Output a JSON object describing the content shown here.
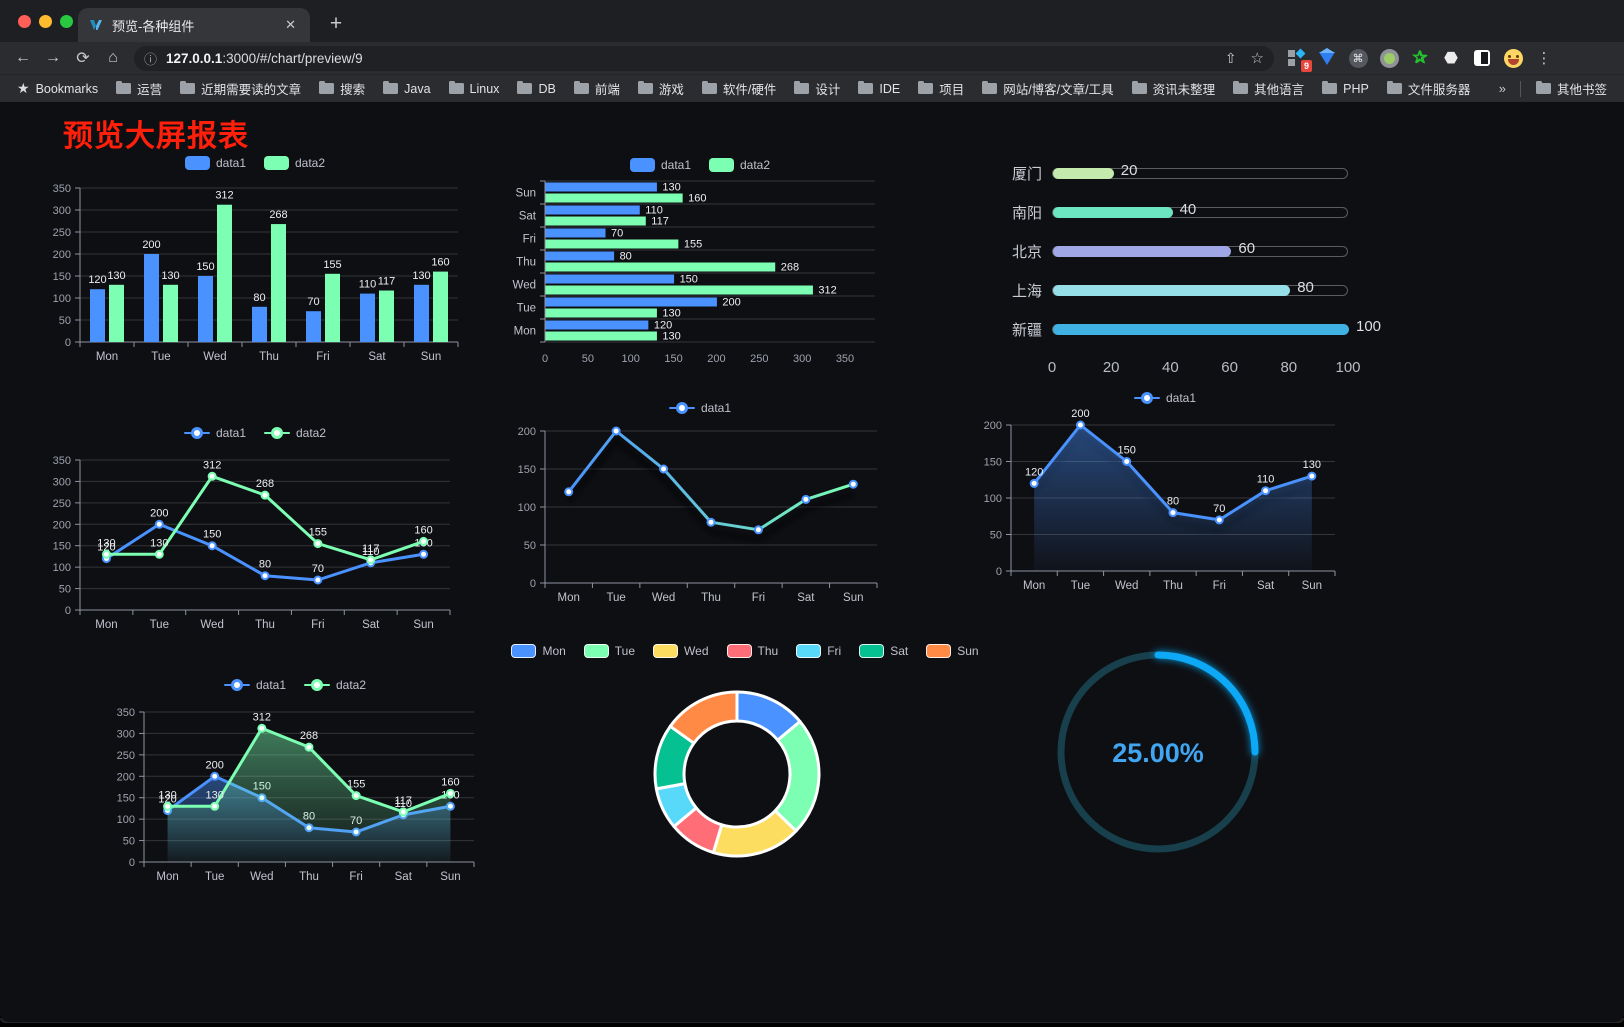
{
  "browser": {
    "traffic_lights": [
      "#ff5f57",
      "#febc2e",
      "#28c840"
    ],
    "tab": {
      "title": "预览-各种组件",
      "close_glyph": "✕"
    },
    "new_tab_plus": "+",
    "nav": {
      "back": "←",
      "forward": "→",
      "reload": "⟳",
      "home": "⌂"
    },
    "url": {
      "info_glyph": "ⓘ",
      "host_bold": "127.0.0.1",
      "rest": ":3000/#/chart/preview/9"
    },
    "url_actions": {
      "share_glyph": "⇧",
      "star_glyph": "☆"
    },
    "extension_badge": "9",
    "menu_glyph": "⋮",
    "bookmarks_star_label": "Bookmarks",
    "bookmarks": [
      "运营",
      "近期需要读的文章",
      "搜索",
      "Java",
      "Linux",
      "DB",
      "前端",
      "游戏",
      "软件/硬件",
      "设计",
      "IDE",
      "项目",
      "网站/博客/文章/工具",
      "资讯未整理",
      "其他语言",
      "PHP",
      "文件服务器"
    ],
    "bookmarks_overflow": "»",
    "other_bookmarks": "其他书签"
  },
  "page": {
    "title": "预览大屏报表",
    "title_color": "#ff1f0a"
  },
  "chart_data": [
    {
      "id": "bar-grouped",
      "type": "bar",
      "categories": [
        "Mon",
        "Tue",
        "Wed",
        "Thu",
        "Fri",
        "Sat",
        "Sun"
      ],
      "series": [
        {
          "name": "data1",
          "color": "#4992ff",
          "values": [
            120,
            200,
            150,
            80,
            70,
            110,
            130
          ]
        },
        {
          "name": "data2",
          "color": "#7cffb2",
          "values": [
            130,
            130,
            312,
            268,
            155,
            117,
            160
          ]
        }
      ],
      "ylim": [
        0,
        350
      ],
      "ystep": 50,
      "value_labels": true,
      "legend_position": "top",
      "grid": true
    },
    {
      "id": "bar-horizontal",
      "type": "bar",
      "orientation": "horizontal",
      "categories_top_to_bottom": [
        "Sun",
        "Sat",
        "Fri",
        "Thu",
        "Wed",
        "Tue",
        "Mon"
      ],
      "series": [
        {
          "name": "data1",
          "color": "#4992ff",
          "values": [
            130,
            110,
            70,
            80,
            150,
            200,
            120
          ]
        },
        {
          "name": "data2",
          "color": "#7cffb2",
          "values": [
            160,
            117,
            155,
            268,
            312,
            130,
            130
          ]
        }
      ],
      "xlim": [
        0,
        350
      ],
      "xstep": 50,
      "value_labels": true,
      "legend_position": "top",
      "grid": true
    },
    {
      "id": "progress-bars",
      "type": "bar",
      "orientation": "horizontal-pill",
      "categories": [
        "厦门",
        "南阳",
        "北京",
        "上海",
        "新疆"
      ],
      "values": [
        20,
        40,
        60,
        80,
        100
      ],
      "colors": [
        "#c4ebad",
        "#6be6c1",
        "#a0a7e6",
        "#96dee8",
        "#3fb1e3"
      ],
      "xlim": [
        0,
        100
      ],
      "xticks": [
        0,
        20,
        40,
        60,
        80,
        100
      ],
      "value_labels": true
    },
    {
      "id": "line-two-series",
      "type": "line",
      "categories": [
        "Mon",
        "Tue",
        "Wed",
        "Thu",
        "Fri",
        "Sat",
        "Sun"
      ],
      "series": [
        {
          "name": "data1",
          "color": "#4992ff",
          "values": [
            120,
            200,
            150,
            80,
            70,
            110,
            130
          ]
        },
        {
          "name": "data2",
          "color": "#7cffb2",
          "values": [
            130,
            130,
            312,
            268,
            155,
            117,
            160
          ]
        }
      ],
      "ylim": [
        0,
        350
      ],
      "ystep": 50,
      "value_labels": true,
      "legend_position": "top",
      "grid": true
    },
    {
      "id": "line-gradient",
      "type": "line",
      "categories": [
        "Mon",
        "Tue",
        "Wed",
        "Thu",
        "Fri",
        "Sat",
        "Sun"
      ],
      "series": [
        {
          "name": "data1",
          "color": "#4992ff",
          "gradient": [
            "#4992ff",
            "#7cffb2"
          ],
          "shadow": true,
          "values": [
            120,
            200,
            150,
            80,
            70,
            110,
            130
          ]
        }
      ],
      "ylim": [
        0,
        200
      ],
      "ystep": 50,
      "value_labels": false,
      "legend_position": "top",
      "grid": true
    },
    {
      "id": "line-area-labels",
      "type": "line",
      "categories": [
        "Mon",
        "Tue",
        "Wed",
        "Thu",
        "Fri",
        "Sat",
        "Sun"
      ],
      "series": [
        {
          "name": "data1",
          "color": "#4992ff",
          "area": true,
          "shadow": true,
          "values": [
            120,
            200,
            150,
            80,
            70,
            110,
            130
          ]
        }
      ],
      "ylim": [
        0,
        200
      ],
      "ystep": 50,
      "value_labels": true,
      "legend_position": "top",
      "grid": true
    },
    {
      "id": "area-two-series",
      "type": "area",
      "categories": [
        "Mon",
        "Tue",
        "Wed",
        "Thu",
        "Fri",
        "Sat",
        "Sun"
      ],
      "series": [
        {
          "name": "data1",
          "color": "#4992ff",
          "area": true,
          "values": [
            120,
            200,
            150,
            80,
            70,
            110,
            130
          ]
        },
        {
          "name": "data2",
          "color": "#7cffb2",
          "area": true,
          "values": [
            130,
            130,
            312,
            268,
            155,
            117,
            160
          ]
        }
      ],
      "ylim": [
        0,
        350
      ],
      "ystep": 50,
      "value_labels": true,
      "legend_position": "top",
      "grid": true
    },
    {
      "id": "donut",
      "type": "pie",
      "categories": [
        "Mon",
        "Tue",
        "Wed",
        "Thu",
        "Fri",
        "Sat",
        "Sun"
      ],
      "values": [
        120,
        200,
        150,
        80,
        70,
        110,
        130
      ],
      "colors": [
        "#4992ff",
        "#7cffb2",
        "#fddd60",
        "#ff6e76",
        "#58d9f9",
        "#05c091",
        "#ff8a45"
      ],
      "inner_radius": 53,
      "outer_radius": 82,
      "border_color": "#ffffff",
      "legend_position": "top"
    },
    {
      "id": "gauge",
      "type": "gauge",
      "value": 25,
      "max": 100,
      "label": "25.00%",
      "color": "#0ca8f6",
      "track_color": "#173f4c",
      "text_color": "#41a6f1"
    }
  ]
}
